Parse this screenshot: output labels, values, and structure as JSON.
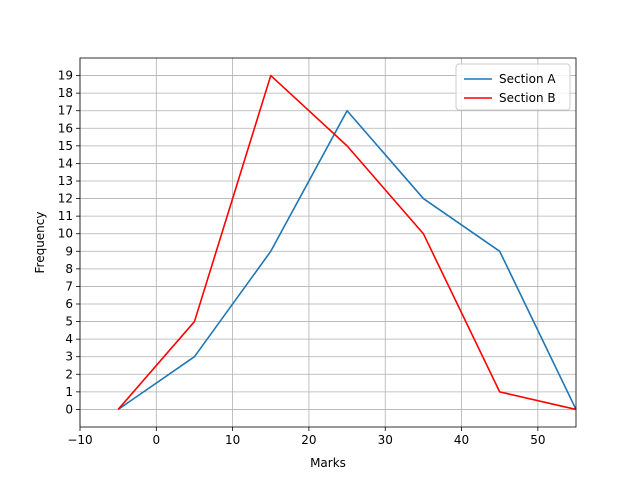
{
  "chart_data": {
    "type": "line",
    "title": "",
    "xlabel": "Marks",
    "ylabel": "Frequency",
    "xlim": [
      -10,
      55
    ],
    "ylim": [
      -1,
      20
    ],
    "xticks": [
      -10,
      0,
      10,
      20,
      30,
      40,
      50
    ],
    "xtick_labels": [
      "−10",
      "0",
      "10",
      "20",
      "30",
      "40",
      "50"
    ],
    "yticks": [
      0,
      1,
      2,
      3,
      4,
      5,
      6,
      7,
      8,
      9,
      10,
      11,
      12,
      13,
      14,
      15,
      16,
      17,
      18,
      19
    ],
    "grid": true,
    "legend_position": "top-right",
    "series": [
      {
        "name": "Section A",
        "color": "#1f77b4",
        "x": [
          -5,
          5,
          15,
          25,
          35,
          45,
          55
        ],
        "y": [
          0,
          3,
          9,
          17,
          12,
          9,
          0
        ]
      },
      {
        "name": "Section B",
        "color": "#ff0000",
        "x": [
          -5,
          5,
          15,
          25,
          35,
          45,
          55
        ],
        "y": [
          0,
          5,
          19,
          15,
          10,
          1,
          0
        ]
      }
    ]
  }
}
